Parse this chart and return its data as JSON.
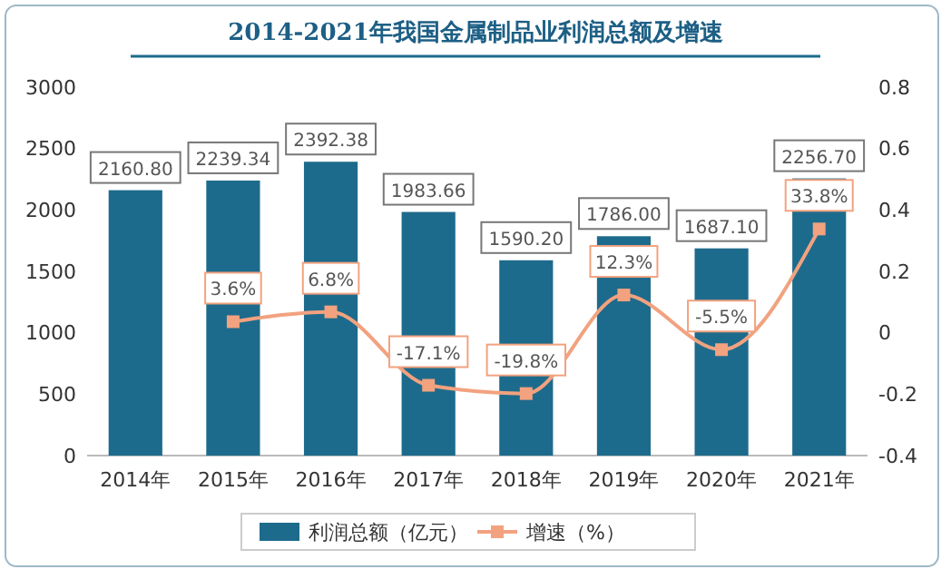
{
  "chart_data": {
    "type": "bar",
    "title": "2014-2021年我国金属制品业利润总额及增速",
    "categories": [
      "2014年",
      "2015年",
      "2016年",
      "2017年",
      "2018年",
      "2019年",
      "2020年",
      "2021年"
    ],
    "series": [
      {
        "name": "利润总额（亿元）",
        "color": "#1d6b8c",
        "values": [
          2160.8,
          2239.34,
          2392.38,
          1983.66,
          1590.2,
          1786.0,
          1687.1,
          2256.7
        ],
        "value_labels": [
          "2160.80",
          "2239.34",
          "2392.38",
          "1983.66",
          "1590.20",
          "1786.00",
          "1687.10",
          "2256.70"
        ]
      },
      {
        "name": "增速（%）",
        "type": "line",
        "axis": "y2",
        "color": "#f2a27f",
        "marker": "square",
        "values": [
          null,
          0.036,
          0.068,
          -0.171,
          -0.198,
          0.123,
          -0.055,
          0.338
        ],
        "value_labels": [
          null,
          "3.6%",
          "6.8%",
          "-17.1%",
          "-19.8%",
          "12.3%",
          "-5.5%",
          "33.8%"
        ]
      }
    ],
    "ylim": [
      0,
      3000
    ],
    "yticks": [
      0,
      500,
      1000,
      1500,
      2000,
      2500,
      3000
    ],
    "y2lim": [
      -0.4,
      0.8
    ],
    "y2ticks": [
      -0.4,
      -0.2,
      0,
      0.2,
      0.4,
      0.6,
      0.8
    ],
    "legend": "bottom"
  }
}
